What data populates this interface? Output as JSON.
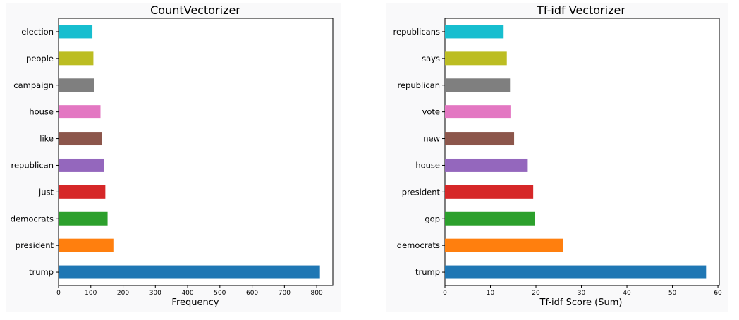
{
  "chart_data": [
    {
      "type": "bar",
      "orientation": "horizontal",
      "title": "CountVectorizer",
      "xlabel": "Frequency",
      "ylabel": "",
      "categories": [
        "trump",
        "president",
        "democrats",
        "just",
        "republican",
        "like",
        "house",
        "campaign",
        "people",
        "election"
      ],
      "values": [
        810,
        170,
        152,
        145,
        140,
        135,
        130,
        111,
        108,
        105
      ],
      "colors": [
        "#1f77b4",
        "#ff7f0e",
        "#2ca02c",
        "#d62728",
        "#9467bd",
        "#8c564b",
        "#e377c2",
        "#7f7f7f",
        "#bcbd22",
        "#17becf"
      ],
      "xlim": [
        0,
        850
      ],
      "xticks": [
        0,
        100,
        200,
        300,
        400,
        500,
        600,
        700,
        800
      ],
      "grid": false
    },
    {
      "type": "bar",
      "orientation": "horizontal",
      "title": "Tf-idf Vectorizer",
      "xlabel": "Tf-idf Score (Sum)",
      "ylabel": "",
      "categories": [
        "trump",
        "democrats",
        "gop",
        "president",
        "house",
        "new",
        "vote",
        "republican",
        "says",
        "republicans"
      ],
      "values": [
        57.4,
        26.0,
        19.7,
        19.4,
        18.2,
        15.2,
        14.4,
        14.3,
        13.6,
        12.9
      ],
      "colors": [
        "#1f77b4",
        "#ff7f0e",
        "#2ca02c",
        "#d62728",
        "#9467bd",
        "#8c564b",
        "#e377c2",
        "#7f7f7f",
        "#bcbd22",
        "#17becf"
      ],
      "xlim": [
        0,
        60.3
      ],
      "xticks": [
        0,
        10,
        20,
        30,
        40,
        50,
        60
      ],
      "grid": false
    }
  ]
}
